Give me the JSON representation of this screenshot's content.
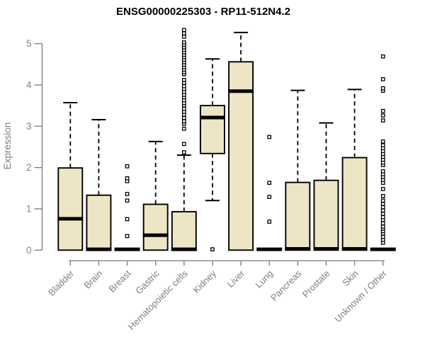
{
  "chart_data": {
    "type": "boxplot",
    "title": "ENSG00000225303 - RP11-512N4.2",
    "ylabel": "Expression",
    "xlabel": "",
    "ylim": [
      0,
      5.45
    ],
    "yticks": [
      0,
      1,
      2,
      3,
      4,
      5
    ],
    "grid": false,
    "legend": "none",
    "colors": {
      "box_fill": "#EDE5C4",
      "box_stroke": "#000000",
      "median": "#000000",
      "axis": "#808080",
      "tick_label": "#848484",
      "category_label": "#7E7E7E",
      "title": "#000000",
      "background": "#FFFFFF"
    },
    "series": [
      {
        "label": "Bladder",
        "whisker_low": 0,
        "q1": 0,
        "median": 0.76,
        "q3": 1.99,
        "whisker_high": 3.57,
        "outliers": []
      },
      {
        "label": "Brain",
        "whisker_low": 0,
        "q1": 0,
        "median": 0.02,
        "q3": 1.33,
        "whisker_high": 3.16,
        "outliers": []
      },
      {
        "label": "Breast",
        "whisker_low": 0,
        "q1": 0,
        "median": 0.02,
        "q3": 0,
        "whisker_high": 0,
        "outliers": [
          0.34,
          0.75,
          1.2,
          1.36,
          1.67,
          1.74,
          2.03
        ]
      },
      {
        "label": "Gastric",
        "whisker_low": 0,
        "q1": 0,
        "median": 0.36,
        "q3": 1.11,
        "whisker_high": 2.63,
        "outliers": []
      },
      {
        "label": "Hematopoietic cells",
        "whisker_low": 0,
        "q1": 0,
        "median": 0.02,
        "q3": 0.93,
        "whisker_high": 2.3,
        "outliers": [
          2.37,
          2.57,
          2.94,
          3.06,
          3.12,
          3.2,
          3.28,
          3.35,
          3.42,
          3.5,
          3.56,
          3.63,
          3.7,
          3.76,
          3.83,
          3.9,
          3.97,
          4.05,
          4.12,
          4.26,
          4.31,
          4.37,
          4.43,
          4.49,
          4.55,
          4.61,
          4.67,
          4.73,
          4.79,
          4.85,
          4.91,
          4.97,
          5.03,
          5.17,
          5.25,
          5.33
        ]
      },
      {
        "label": "Kidney",
        "whisker_low": 1.2,
        "q1": 2.34,
        "median": 3.21,
        "q3": 3.5,
        "whisker_high": 4.63,
        "outliers": [
          0.02
        ]
      },
      {
        "label": "Liver",
        "whisker_low": 0,
        "q1": 0,
        "median": 3.85,
        "q3": 4.56,
        "whisker_high": 5.27,
        "outliers": []
      },
      {
        "label": "Lung",
        "whisker_low": 0,
        "q1": 0,
        "median": 0.02,
        "q3": 0,
        "whisker_high": 0,
        "outliers": [
          0.69,
          1.29,
          1.63,
          2.74
        ]
      },
      {
        "label": "Pancreas",
        "whisker_low": 0,
        "q1": 0,
        "median": 0.03,
        "q3": 1.64,
        "whisker_high": 3.87,
        "outliers": []
      },
      {
        "label": "Prostate",
        "whisker_low": 0,
        "q1": 0,
        "median": 0.03,
        "q3": 1.69,
        "whisker_high": 3.08,
        "outliers": []
      },
      {
        "label": "Skin",
        "whisker_low": 0,
        "q1": 0,
        "median": 0.03,
        "q3": 2.24,
        "whisker_high": 3.89,
        "outliers": []
      },
      {
        "label": "Unknown / Other",
        "whisker_low": 0,
        "q1": 0,
        "median": 0.02,
        "q3": 0,
        "whisker_high": 0,
        "outliers": [
          0.18,
          0.25,
          0.32,
          0.4,
          0.46,
          0.52,
          0.57,
          0.65,
          0.73,
          0.8,
          0.88,
          0.96,
          1.04,
          1.12,
          1.2,
          1.31,
          1.48,
          1.63,
          1.7,
          1.77,
          1.84,
          1.91,
          2.06,
          2.12,
          2.19,
          2.26,
          2.33,
          2.4,
          2.47,
          2.54,
          2.63,
          3.14,
          3.26,
          3.37,
          3.86,
          3.92,
          4.14,
          4.69
        ]
      }
    ]
  }
}
